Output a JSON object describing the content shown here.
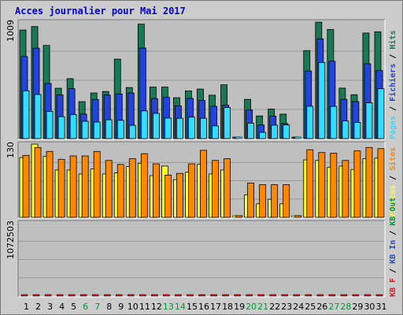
{
  "title": "Acces journalier pour Mai 2017",
  "chart_data": {
    "type": "bar",
    "title": "Acces journalier pour Mai 2017",
    "categories": [
      "1",
      "2",
      "3",
      "4",
      "5",
      "6",
      "7",
      "8",
      "9",
      "10",
      "11",
      "12",
      "13",
      "14",
      "15",
      "16",
      "17",
      "18",
      "19",
      "20",
      "21",
      "22",
      "23",
      "24",
      "25",
      "26",
      "27",
      "28",
      "29",
      "30",
      "31"
    ],
    "weekend_days": [
      "6",
      "7",
      "13",
      "14",
      "20",
      "21",
      "27",
      "28"
    ],
    "colors": {
      "hits": "#197955",
      "files": "#2244dd",
      "pages": "#33ddff",
      "visits": "#ffff33",
      "sites": "#ff8800",
      "kbf": "#ee1111",
      "weekday_label": "#000000",
      "weekend_label": "#009933"
    },
    "panels": [
      {
        "name": "hits-files-pages",
        "ymax": 1009,
        "ymax_label": "1009",
        "legend": [
          {
            "text": "Pages",
            "color": "#33ddff"
          },
          {
            "text": " / ",
            "color": "#000000"
          },
          {
            "text": "Fichiers",
            "color": "#2244dd"
          },
          {
            "text": " / ",
            "color": "#000000"
          },
          {
            "text": "Hits",
            "color": "#197955"
          }
        ],
        "series": [
          {
            "key": "hits",
            "values": [
              940,
              970,
              807,
              436,
              519,
              320,
              395,
              408,
              688,
              442,
              991,
              446,
              446,
              354,
              413,
              429,
              376,
              466,
              0,
              340,
              196,
              256,
              212,
              0,
              762,
              1008,
              945,
              437,
              380,
              914,
              925
            ]
          },
          {
            "key": "files",
            "values": [
              710,
              783,
              477,
              378,
              432,
              212,
              339,
              377,
              387,
              395,
              784,
              346,
              357,
              283,
              348,
              330,
              280,
              290,
              0,
              247,
              118,
              195,
              131,
              0,
              585,
              864,
              670,
              340,
              320,
              648,
              590
            ]
          },
          {
            "key": "pages",
            "values": [
              414,
              382,
              236,
              190,
              208,
              150,
              143,
              163,
              158,
              115,
              240,
              218,
              178,
              176,
              186,
              176,
              110,
              269,
              0,
              133,
              54,
              116,
              118,
              0,
              280,
              659,
              279,
              153,
              140,
              310,
              432
            ]
          }
        ]
      },
      {
        "name": "visits-sites",
        "ymax": 130,
        "ymax_label": "130",
        "legend": [
          {
            "text": "Visites",
            "color": "#ffff33"
          },
          {
            "text": " / ",
            "color": "#000000"
          },
          {
            "text": "Sites",
            "color": "#ff8800"
          }
        ],
        "series": [
          {
            "key": "visits",
            "values": [
              106,
              130,
              108,
              84,
              84,
              77,
              86,
              77,
              79,
              90,
              96,
              74,
              91,
              67,
              80,
              94,
              77,
              84,
              0,
              40,
              24,
              32,
              24,
              0,
              102,
              101,
              89,
              91,
              85,
              104,
              105
            ]
          },
          {
            "key": "sites",
            "values": [
              110,
              124,
              117,
              103,
              109,
              109,
              117,
              101,
              94,
              104,
              113,
              95,
              75,
              78,
              95,
              119,
              101,
              104,
              3,
              61,
              58,
              58,
              58,
              3,
              120,
              115,
              114,
              101,
              118,
              124,
              122
            ]
          }
        ]
      },
      {
        "name": "kbf",
        "ymax": 1072503,
        "ymax_label": "1072503",
        "legend": [
          {
            "text": "KB F",
            "color": "#ee1111"
          },
          {
            "text": " / ",
            "color": "#000000"
          },
          {
            "text": "KB In",
            "color": "#2244dd"
          },
          {
            "text": " / ",
            "color": "#000000"
          },
          {
            "text": "KB Out",
            "color": "#009933"
          }
        ],
        "series": [
          {
            "key": "kbf",
            "values": [
              527,
              464,
              313,
              195,
              153,
              85,
              150,
              280,
              75,
              294,
              313,
              643,
              128,
              452,
              182,
              1071,
              262,
              0,
              0,
              50,
              150,
              18,
              44,
              0,
              324,
              479,
              721,
              355,
              214,
              290,
              375
            ]
          }
        ]
      }
    ]
  }
}
